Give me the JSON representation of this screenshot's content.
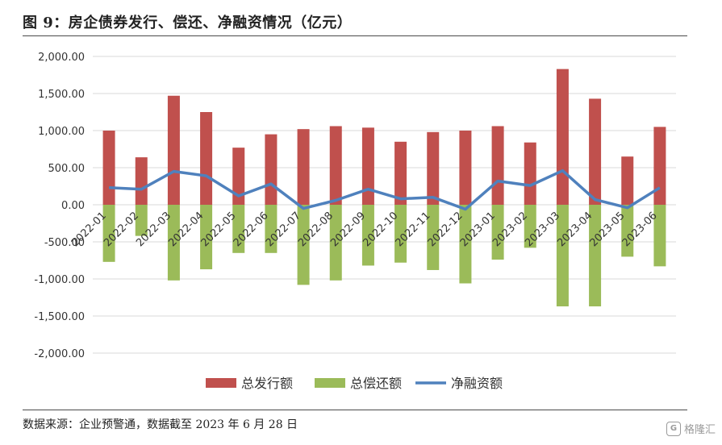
{
  "header": {
    "title": "图 9：房企债券发行、偿还、净融资情况（亿元）"
  },
  "footer": {
    "source": "数据来源：企业预警通，数据截至 2023 年 6 月 28 日"
  },
  "watermark": {
    "text": "格隆汇",
    "logo": "G"
  },
  "colors": {
    "issuance": "#c0504d",
    "repayment": "#9bbb59",
    "net": "#4f81bd",
    "grid": "#d9d9d9"
  },
  "chart_data": {
    "type": "bar",
    "title": "",
    "xlabel": "",
    "ylabel": "",
    "ylim": [
      -2000,
      2000
    ],
    "yticks": [
      2000,
      1500,
      1000,
      500,
      0,
      -500,
      -1000,
      -1500,
      -2000
    ],
    "ytick_labels": [
      "2,000.00",
      "1,500.00",
      "1,000.00",
      "500.00",
      "0.00",
      "-500.00",
      "-1,000.00",
      "-1,500.00",
      "-2,000.00"
    ],
    "grid": true,
    "legend_position": "bottom",
    "categories": [
      "2022-01",
      "2022-02",
      "2022-03",
      "2022-04",
      "2022-05",
      "2022-06",
      "2022-07",
      "2022-08",
      "2022-09",
      "2022-10",
      "2022-11",
      "2022-12",
      "2023-01",
      "2023-02",
      "2023-03",
      "2023-04",
      "2023-05",
      "2023-06"
    ],
    "series": [
      {
        "name": "总发行额",
        "kind": "bar",
        "color": "#c0504d",
        "values": [
          1000,
          640,
          1470,
          1250,
          770,
          950,
          1020,
          1060,
          1040,
          850,
          980,
          1000,
          1060,
          840,
          1830,
          1430,
          650,
          1050
        ]
      },
      {
        "name": "总偿还额",
        "kind": "bar",
        "color": "#9bbb59",
        "values": [
          -770,
          -420,
          -1020,
          -870,
          -650,
          -650,
          -1080,
          -1020,
          -820,
          -780,
          -880,
          -1060,
          -740,
          -580,
          -1370,
          -1370,
          -700,
          -830
        ]
      },
      {
        "name": "净融资额",
        "kind": "line",
        "color": "#4f81bd",
        "values": [
          230,
          210,
          450,
          390,
          120,
          280,
          -50,
          60,
          210,
          80,
          100,
          -60,
          320,
          260,
          460,
          70,
          -40,
          230
        ]
      }
    ]
  }
}
